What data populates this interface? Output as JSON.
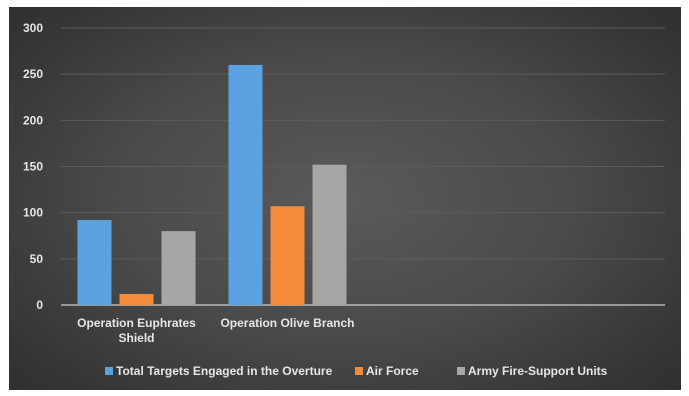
{
  "chart_data": {
    "type": "bar",
    "categories": [
      [
        "Operation Euphrates",
        "Shield"
      ],
      [
        "Operation Olive Branch"
      ]
    ],
    "series": [
      {
        "name": "Total Targets Engaged in the Overture",
        "values": [
          92,
          260
        ],
        "color": "#5ba3e0"
      },
      {
        "name": "Air Force",
        "values": [
          12,
          107
        ],
        "color": "#f28c38"
      },
      {
        "name": "Army Fire-Support Units",
        "values": [
          80,
          152
        ],
        "color": "#a6a6a6"
      }
    ],
    "yticks": [
      0,
      50,
      100,
      150,
      200,
      250,
      300
    ],
    "ylim": [
      0,
      300
    ],
    "grid": true,
    "legend_position": "bottom"
  }
}
